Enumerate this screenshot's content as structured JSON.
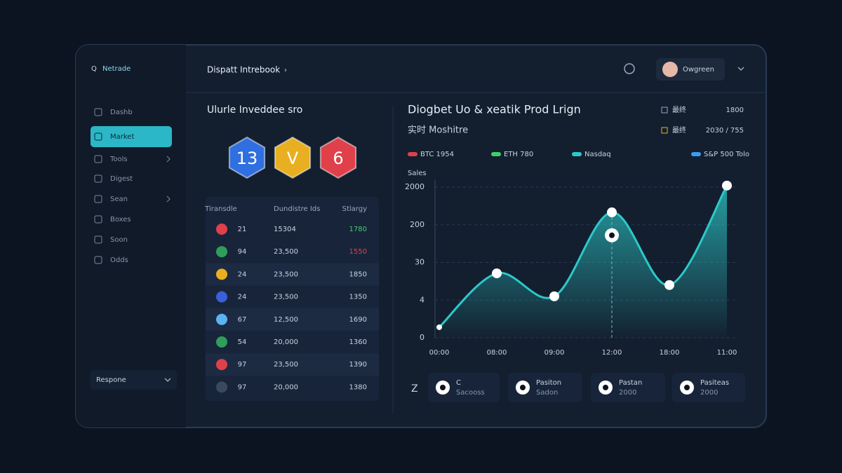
{
  "sidebar": {
    "brand": "Netrade",
    "items": [
      "Dashb",
      "Market",
      "Tools",
      "Digest",
      "Sean",
      "Boxes",
      "Soon",
      "Odds"
    ],
    "active": 1,
    "footer": "Respone"
  },
  "header": {
    "title": "Dispatt Intrebook",
    "user": "Owgreen"
  },
  "left_panel": {
    "title": "Ulurle Inveddee sro",
    "badges": [
      {
        "label": "13",
        "color": "#2f6fe0"
      },
      {
        "label": "V",
        "color": "#e8b020"
      },
      {
        "label": "6",
        "color": "#e0404a"
      }
    ],
    "table": {
      "headers": [
        "Tiransdle",
        "Dundistre Ids",
        "Stlargy"
      ],
      "rows": [
        {
          "icon": "#e0404a",
          "cells": [
            "21",
            "15304",
            "1780"
          ],
          "color": "#3ecf6a"
        },
        {
          "icon": "#2f9e5a",
          "cells": [
            "94",
            "23,500",
            "1550"
          ],
          "color": "#e0404a"
        },
        {
          "icon": "#e8b020",
          "cells": [
            "24",
            "23,500",
            "1850"
          ],
          "color": "#c9d3e0"
        },
        {
          "icon": "#3a5fd8",
          "cells": [
            "24",
            "23,500",
            "1350"
          ],
          "color": "#c9d3e0"
        },
        {
          "icon": "#5ab4f0",
          "cells": [
            "67",
            "12,500",
            "1690"
          ],
          "color": "#c9d3e0"
        },
        {
          "icon": "#2f9e5a",
          "cells": [
            "54",
            "20,000",
            "1360"
          ],
          "color": "#c9d3e0"
        },
        {
          "icon": "#e0404a",
          "cells": [
            "97",
            "23,500",
            "1390"
          ],
          "color": "#c9d3e0"
        },
        {
          "icon": "#3a4a5e",
          "cells": [
            "97",
            "20,000",
            "1380"
          ],
          "color": "#c9d3e0"
        }
      ]
    }
  },
  "chart_panel": {
    "title": "Diogbet Uo & xeatik Prod Lrign",
    "subtitle": "实时 Moshitre",
    "meta": [
      {
        "label": "最终",
        "value": "1800"
      },
      {
        "label": "最终",
        "value": "2030 / 755"
      }
    ]
  },
  "chart_data": {
    "type": "line",
    "y_label": "Sales",
    "legend": [
      {
        "label": "BTC 1954",
        "color": "#e0404a"
      },
      {
        "label": "ETH 780",
        "color": "#3ecf6a"
      },
      {
        "label": "Nasdaq",
        "color": "#2cc9c9"
      },
      {
        "label": "S&P 500 Tolo",
        "color": "#3a9cf0"
      }
    ],
    "categories": [
      "00:00",
      "08:00",
      "09:00",
      "12:00",
      "18:00",
      "11:00"
    ],
    "series": [
      {
        "color": "#2cc9c9",
        "values": [
          0.28,
          1.71,
          1.1,
          3.33,
          1.4,
          4.04
        ]
      },
      {
        "color": "#ffffff",
        "values": [
          null,
          null,
          null,
          2.72,
          null,
          null
        ]
      }
    ],
    "ylim": [
      0,
      4.2
    ],
    "yticks": [
      {
        "value": 0,
        "label": "0"
      },
      {
        "value": 1,
        "label": "4"
      },
      {
        "value": 2,
        "label": "30"
      },
      {
        "value": 3,
        "label": "200"
      },
      {
        "value": 4,
        "label": "2000"
      }
    ],
    "grid": true
  },
  "cards": {
    "prefix": "Z",
    "items": [
      {
        "title": "C",
        "subtitle": "Sacooss"
      },
      {
        "title": "Pasiton",
        "subtitle": "Sadon"
      },
      {
        "title": "Pastan",
        "subtitle": "2000"
      },
      {
        "title": "Pasiteas",
        "subtitle": "2000"
      }
    ]
  }
}
